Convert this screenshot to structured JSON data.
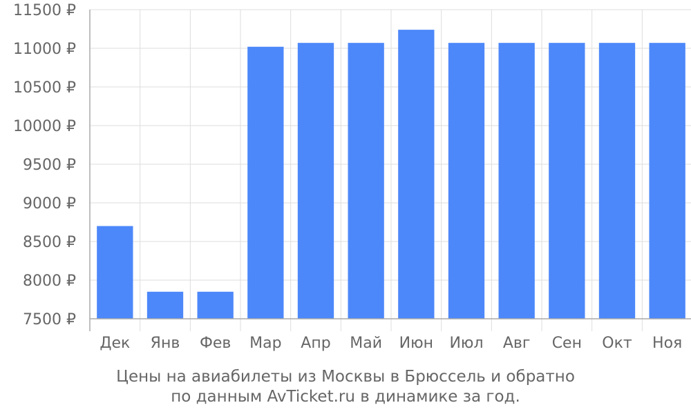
{
  "chart_data": {
    "type": "bar",
    "categories": [
      "Дек",
      "Янв",
      "Фев",
      "Мар",
      "Апр",
      "Май",
      "Июн",
      "Июл",
      "Авг",
      "Сен",
      "Окт",
      "Ноя"
    ],
    "values": [
      8700,
      7850,
      7850,
      11020,
      11070,
      11070,
      11240,
      11070,
      11070,
      11070,
      11070,
      11070
    ],
    "ylim": [
      7500,
      11500
    ],
    "yticks": [
      7500,
      8000,
      8500,
      9000,
      9500,
      10000,
      10500,
      11000,
      11500
    ],
    "ytick_labels": [
      "7500 ₽",
      "8000 ₽",
      "8500 ₽",
      "9000 ₽",
      "9500 ₽",
      "10000 ₽",
      "10500 ₽",
      "11000 ₽",
      "11500 ₽"
    ],
    "grid": true,
    "bar_color": "#4d88fa",
    "caption_line1": "Цены на авиабилеты из Москвы в Брюссель и обратно",
    "caption_line2": "по данным AvTicket.ru в динамике за год."
  }
}
